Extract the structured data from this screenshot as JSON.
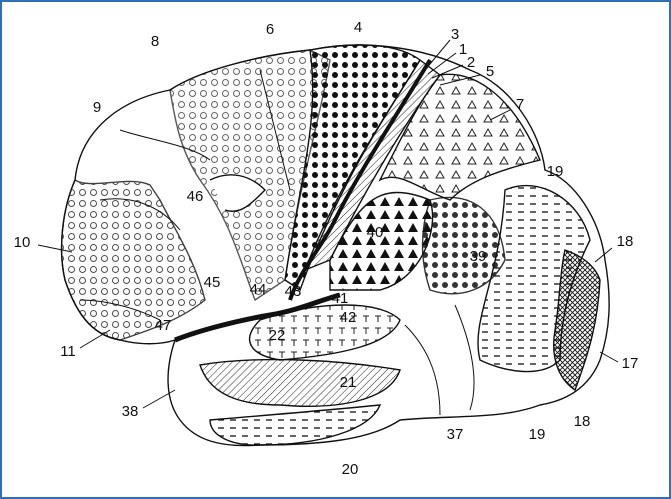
{
  "labels": [
    "8",
    "6",
    "4",
    "3",
    "1",
    "2",
    "5",
    "7",
    "9",
    "46",
    "19",
    "18",
    "10",
    "40",
    "39",
    "45",
    "44",
    "43",
    "41",
    "42",
    "22",
    "47",
    "11",
    "21",
    "17",
    "38",
    "18",
    "19",
    "37",
    "20"
  ]
}
